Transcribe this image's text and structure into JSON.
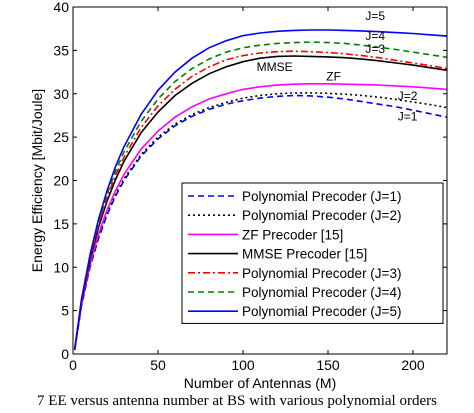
{
  "chart_data": {
    "type": "line",
    "xlabel": "Number of Antennas (M)",
    "ylabel": "Energy Efficiency [Mbit/Joule]",
    "xlim": [
      0,
      220
    ],
    "ylim": [
      0,
      40
    ],
    "xticks": [
      0,
      50,
      100,
      150,
      200
    ],
    "yticks": [
      0,
      5,
      10,
      15,
      20,
      25,
      30,
      35,
      40
    ],
    "grid": false,
    "legend_position": "bottom-right",
    "x": [
      1,
      5,
      10,
      15,
      20,
      25,
      30,
      40,
      50,
      60,
      70,
      80,
      90,
      100,
      110,
      120,
      130,
      140,
      150,
      160,
      170,
      180,
      190,
      200,
      210,
      220
    ],
    "series": [
      {
        "name": "Polynomial Precoder (J=1)",
        "color": "#0000ff",
        "dash": "6,4",
        "values": [
          0.5,
          5.5,
          10.0,
          13.3,
          16.0,
          18.2,
          20.0,
          22.8,
          24.8,
          26.3,
          27.4,
          28.2,
          28.8,
          29.2,
          29.5,
          29.7,
          29.8,
          29.75,
          29.6,
          29.4,
          29.1,
          28.8,
          28.5,
          28.1,
          27.7,
          27.3
        ]
      },
      {
        "name": "Polynomial Precoder (J=2)",
        "color": "#000000",
        "dash": "2,3",
        "values": [
          0.5,
          5.6,
          10.1,
          13.5,
          16.2,
          18.4,
          20.2,
          23.0,
          25.0,
          26.5,
          27.6,
          28.4,
          29.0,
          29.5,
          29.8,
          30.0,
          30.1,
          30.1,
          30.05,
          29.95,
          29.8,
          29.6,
          29.35,
          29.05,
          28.75,
          28.4
        ]
      },
      {
        "name": "ZF Precoder [15]",
        "color": "#ff00ff",
        "dash": "",
        "values": [
          0.5,
          5.7,
          10.3,
          13.8,
          16.6,
          18.8,
          20.7,
          23.6,
          25.7,
          27.3,
          28.5,
          29.4,
          30.0,
          30.5,
          30.8,
          31.0,
          31.1,
          31.15,
          31.15,
          31.1,
          31.05,
          31.0,
          30.9,
          30.8,
          30.65,
          30.5
        ]
      },
      {
        "name": "MMSE Precoder [15]",
        "color": "#000000",
        "dash": "",
        "values": [
          0.5,
          6.0,
          10.8,
          14.6,
          17.6,
          20.1,
          22.2,
          25.5,
          27.9,
          29.8,
          31.2,
          32.3,
          33.1,
          33.7,
          34.1,
          34.3,
          34.35,
          34.3,
          34.25,
          34.15,
          34.0,
          33.8,
          33.55,
          33.3,
          33.0,
          32.7
        ]
      },
      {
        "name": "Polynomial Precoder (J=3)",
        "color": "#ff0000",
        "dash": "7,3,2,3",
        "values": [
          0.5,
          6.1,
          11.0,
          14.9,
          18.0,
          20.6,
          22.7,
          26.1,
          28.6,
          30.5,
          32.0,
          33.1,
          33.9,
          34.4,
          34.7,
          34.85,
          34.9,
          34.85,
          34.75,
          34.6,
          34.4,
          34.15,
          33.85,
          33.55,
          33.25,
          32.9
        ]
      },
      {
        "name": "Polynomial Precoder (J=4)",
        "color": "#008000",
        "dash": "6,4",
        "values": [
          0.5,
          6.2,
          11.2,
          15.2,
          18.4,
          21.1,
          23.3,
          26.8,
          29.4,
          31.4,
          32.9,
          34.0,
          34.8,
          35.3,
          35.6,
          35.8,
          35.9,
          35.95,
          35.9,
          35.8,
          35.6,
          35.35,
          35.1,
          34.8,
          34.5,
          34.2
        ]
      },
      {
        "name": "Polynomial Precoder (J=5)",
        "color": "#0000ff",
        "dash": "",
        "values": [
          0.5,
          6.3,
          11.4,
          15.5,
          18.8,
          21.6,
          23.9,
          27.6,
          30.4,
          32.5,
          34.1,
          35.3,
          36.1,
          36.7,
          37.0,
          37.2,
          37.3,
          37.35,
          37.35,
          37.3,
          37.25,
          37.15,
          37.05,
          36.95,
          36.8,
          36.65
        ]
      }
    ],
    "annotations": [
      {
        "text": "J=5",
        "x": 172,
        "y": 38.5
      },
      {
        "text": "J=4",
        "x": 172,
        "y": 36.2
      },
      {
        "text": "J=3",
        "x": 172,
        "y": 34.7
      },
      {
        "text": "MMSE",
        "x": 108,
        "y": 32.6
      },
      {
        "text": "ZF",
        "x": 149,
        "y": 31.5
      },
      {
        "text": "J=2",
        "x": 191,
        "y": 29.3
      },
      {
        "text": "J=1",
        "x": 191,
        "y": 26.9
      }
    ]
  },
  "caption": "7 EE versus antenna number at BS with various polynomial orders"
}
